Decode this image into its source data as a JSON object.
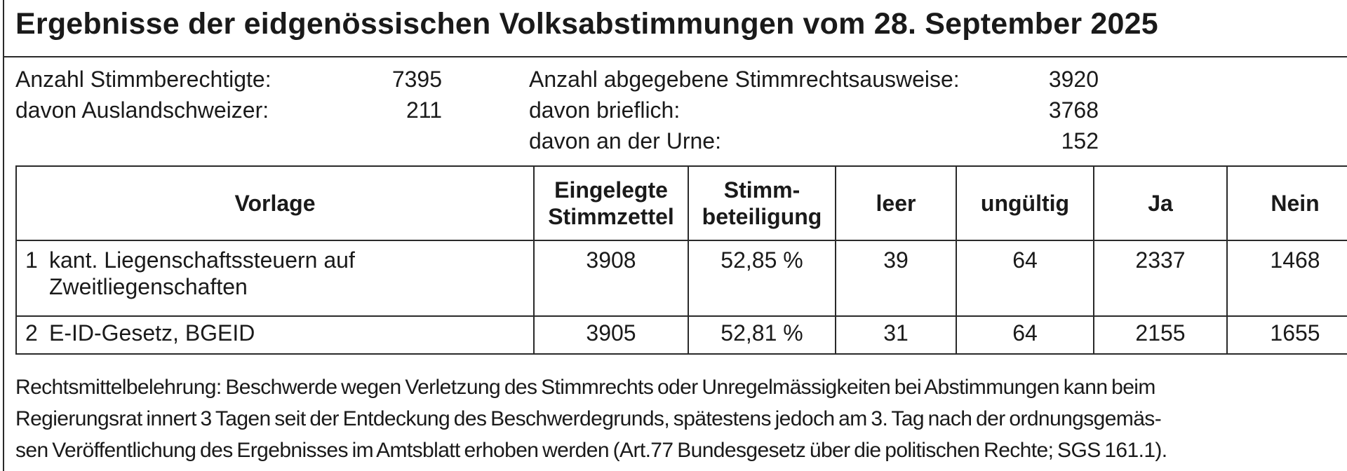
{
  "title": "Ergebnisse der eidgenössischen Volksabstimmungen vom 28. September 2025",
  "stats_left": [
    {
      "label": "Anzahl Stimmberechtigte:",
      "value": "7395"
    },
    {
      "label": "davon Auslandschweizer:",
      "value": "211"
    }
  ],
  "stats_right": [
    {
      "label": "Anzahl abgegebene Stimmrechtsausweise:",
      "value": "3920"
    },
    {
      "label": "davon brieflich:",
      "value": "3768"
    },
    {
      "label": "davon an der Urne:",
      "value": "152"
    }
  ],
  "table": {
    "headers": {
      "vorlage": "Vorlage",
      "eingelegte_1": "Eingelegte",
      "eingelegte_2": "Stimmzettel",
      "stimm_1": "Stimm-",
      "stimm_2": "beteiligung",
      "leer": "leer",
      "ungueltig": "ungültig",
      "ja": "Ja",
      "nein": "Nein"
    },
    "rows": [
      {
        "num": "1",
        "vorlage_1": "kant. Liegenschaftssteuern auf",
        "vorlage_2": "Zweitliegenschaften",
        "eingelegte": "3908",
        "beteiligung": "52,85 %",
        "leer": "39",
        "ungueltig": "64",
        "ja": "2337",
        "nein": "1468"
      },
      {
        "num": "2",
        "vorlage_1": "E-ID-Gesetz, BGEID",
        "vorlage_2": "",
        "eingelegte": "3905",
        "beteiligung": "52,81 %",
        "leer": "31",
        "ungueltig": "64",
        "ja": "2155",
        "nein": "1655"
      }
    ]
  },
  "legal": {
    "line1": "Rechtsmittelbelehrung: Beschwerde wegen Verletzung des Stimmrechts oder Unregelmässigkeiten bei Abstimmungen kann beim",
    "line2": "Regierungsrat innert 3 Tagen seit der Entdeckung des Beschwerdegrunds, spätestens jedoch am 3. Tag nach der ordnungsgemäs-",
    "line3": "sen Veröffentlichung des Ergebnisses im Amtsblatt erhoben werden (Art.77 Bundesgesetz über die politischen Rechte; SGS 161.1)."
  }
}
